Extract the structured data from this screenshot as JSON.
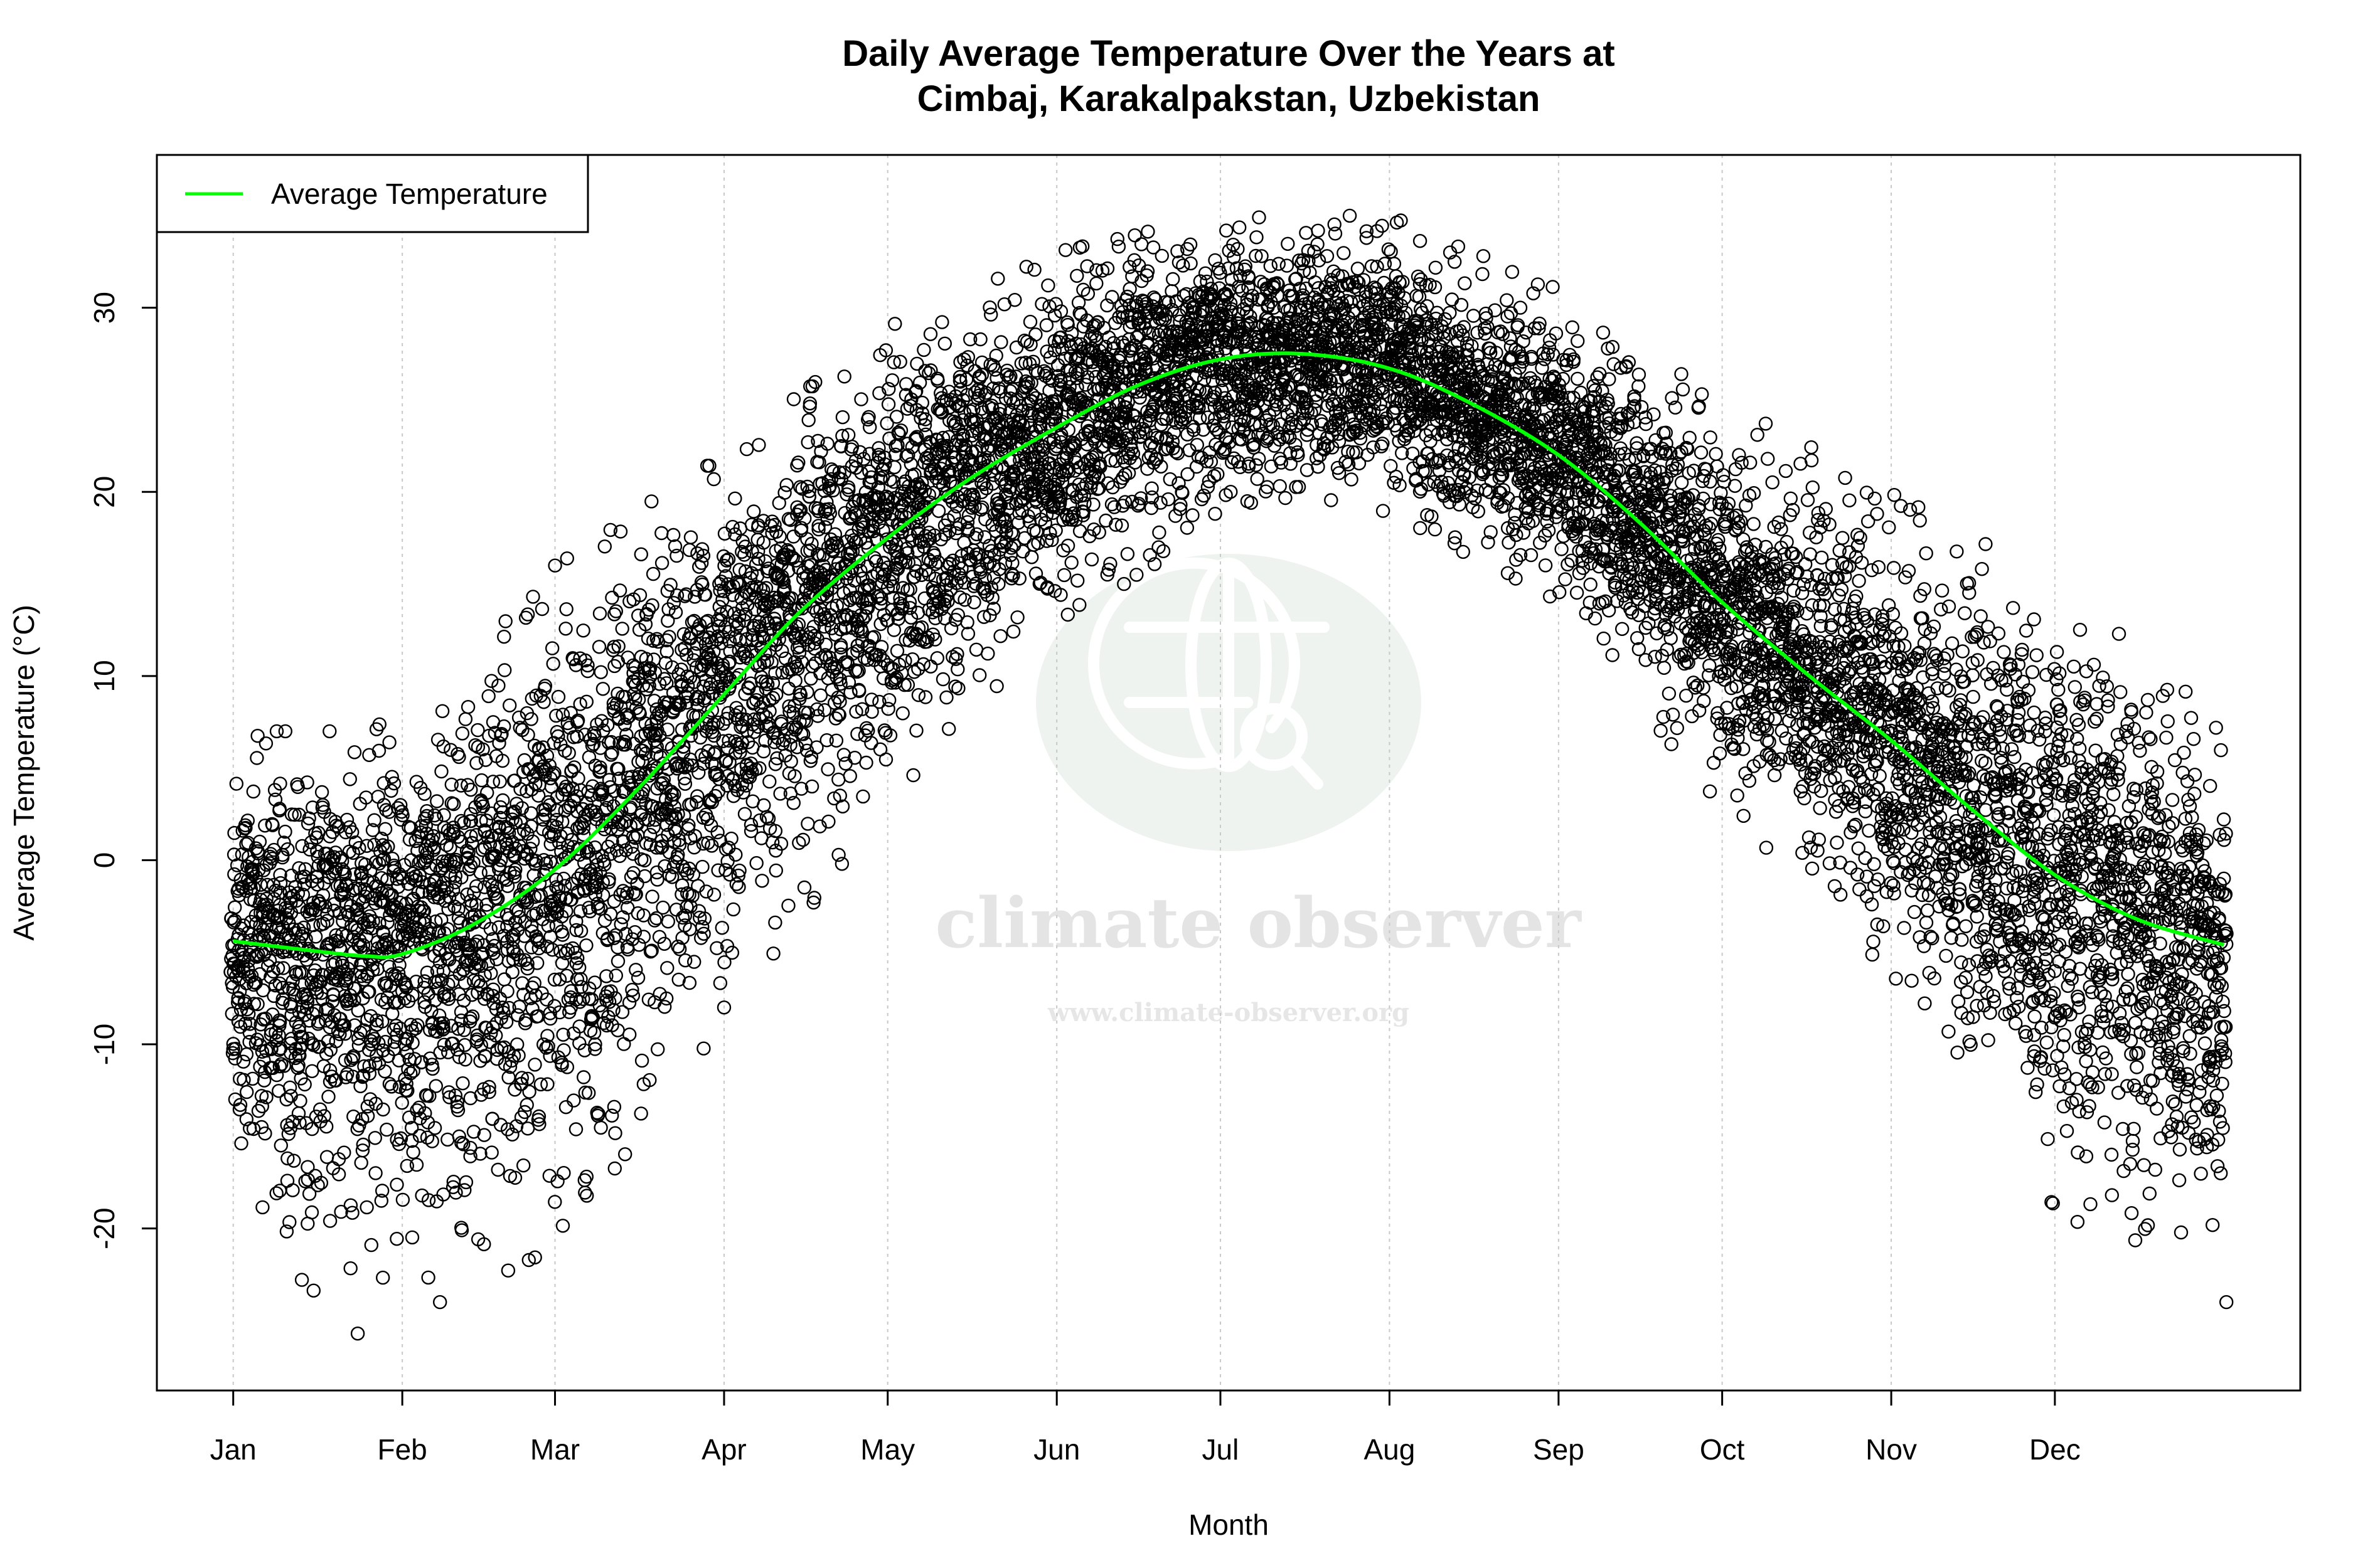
{
  "chart_data": {
    "type": "scatter",
    "title_line1": "Daily Average Temperature Over the Years at",
    "title_line2": "Cimbaj, Karakalpakstan, Uzbekistan",
    "xlabel": "Month",
    "ylabel": "Average Temperature (°C)",
    "x_unit": "day of year",
    "xlim": [
      -13,
      380
    ],
    "ylim": [
      -28.8,
      38.3
    ],
    "x_ticks": [
      {
        "day": 1,
        "label": "Jan"
      },
      {
        "day": 32,
        "label": "Feb"
      },
      {
        "day": 60,
        "label": "Mar"
      },
      {
        "day": 91,
        "label": "Apr"
      },
      {
        "day": 121,
        "label": "May"
      },
      {
        "day": 152,
        "label": "Jun"
      },
      {
        "day": 182,
        "label": "Jul"
      },
      {
        "day": 213,
        "label": "Aug"
      },
      {
        "day": 244,
        "label": "Sep"
      },
      {
        "day": 274,
        "label": "Oct"
      },
      {
        "day": 305,
        "label": "Nov"
      },
      {
        "day": 335,
        "label": "Dec"
      }
    ],
    "y_ticks": [
      -20,
      -10,
      0,
      10,
      20,
      30
    ],
    "grid": "vertical dotted at month starts",
    "legend": {
      "position": "top-left",
      "entries": [
        {
          "label": "Average Temperature",
          "color": "#00ff00"
        }
      ]
    },
    "observations": {
      "marker": "open circle",
      "color": "#000000",
      "observed_range_by_day": [
        {
          "day": 1,
          "min": -19,
          "max": 7
        },
        {
          "day": 25,
          "min": -26,
          "max": 7
        },
        {
          "day": 32,
          "min": -25,
          "max": 8
        },
        {
          "day": 60,
          "min": -21,
          "max": 16
        },
        {
          "day": 91,
          "min": -9,
          "max": 22
        },
        {
          "day": 121,
          "min": 3,
          "max": 29
        },
        {
          "day": 152,
          "min": 13,
          "max": 33
        },
        {
          "day": 182,
          "min": 18,
          "max": 35
        },
        {
          "day": 213,
          "min": 19,
          "max": 35
        },
        {
          "day": 244,
          "min": 14,
          "max": 31
        },
        {
          "day": 274,
          "min": 3,
          "max": 25
        },
        {
          "day": 305,
          "min": -6,
          "max": 20
        },
        {
          "day": 335,
          "min": -19,
          "max": 15
        },
        {
          "day": 366,
          "min": -24,
          "max": 8
        }
      ]
    },
    "series": [
      {
        "name": "Average Temperature",
        "color": "#00ff00",
        "x": [
          1,
          15,
          25,
          32,
          45,
          60,
          75,
          91,
          105,
          121,
          136,
          152,
          167,
          182,
          197,
          213,
          228,
          244,
          259,
          274,
          290,
          305,
          320,
          335,
          350,
          366
        ],
        "y": [
          -4.4,
          -4.9,
          -5.2,
          -5.1,
          -3.5,
          -0.5,
          3.8,
          9.0,
          13.5,
          17.5,
          20.7,
          23.5,
          25.8,
          27.2,
          27.5,
          26.7,
          24.8,
          22.0,
          18.3,
          14.0,
          10.0,
          6.5,
          2.7,
          -0.8,
          -3.2,
          -4.6
        ]
      }
    ]
  },
  "watermark": {
    "brand": "climate observer",
    "url": "www.climate-observer.org"
  }
}
